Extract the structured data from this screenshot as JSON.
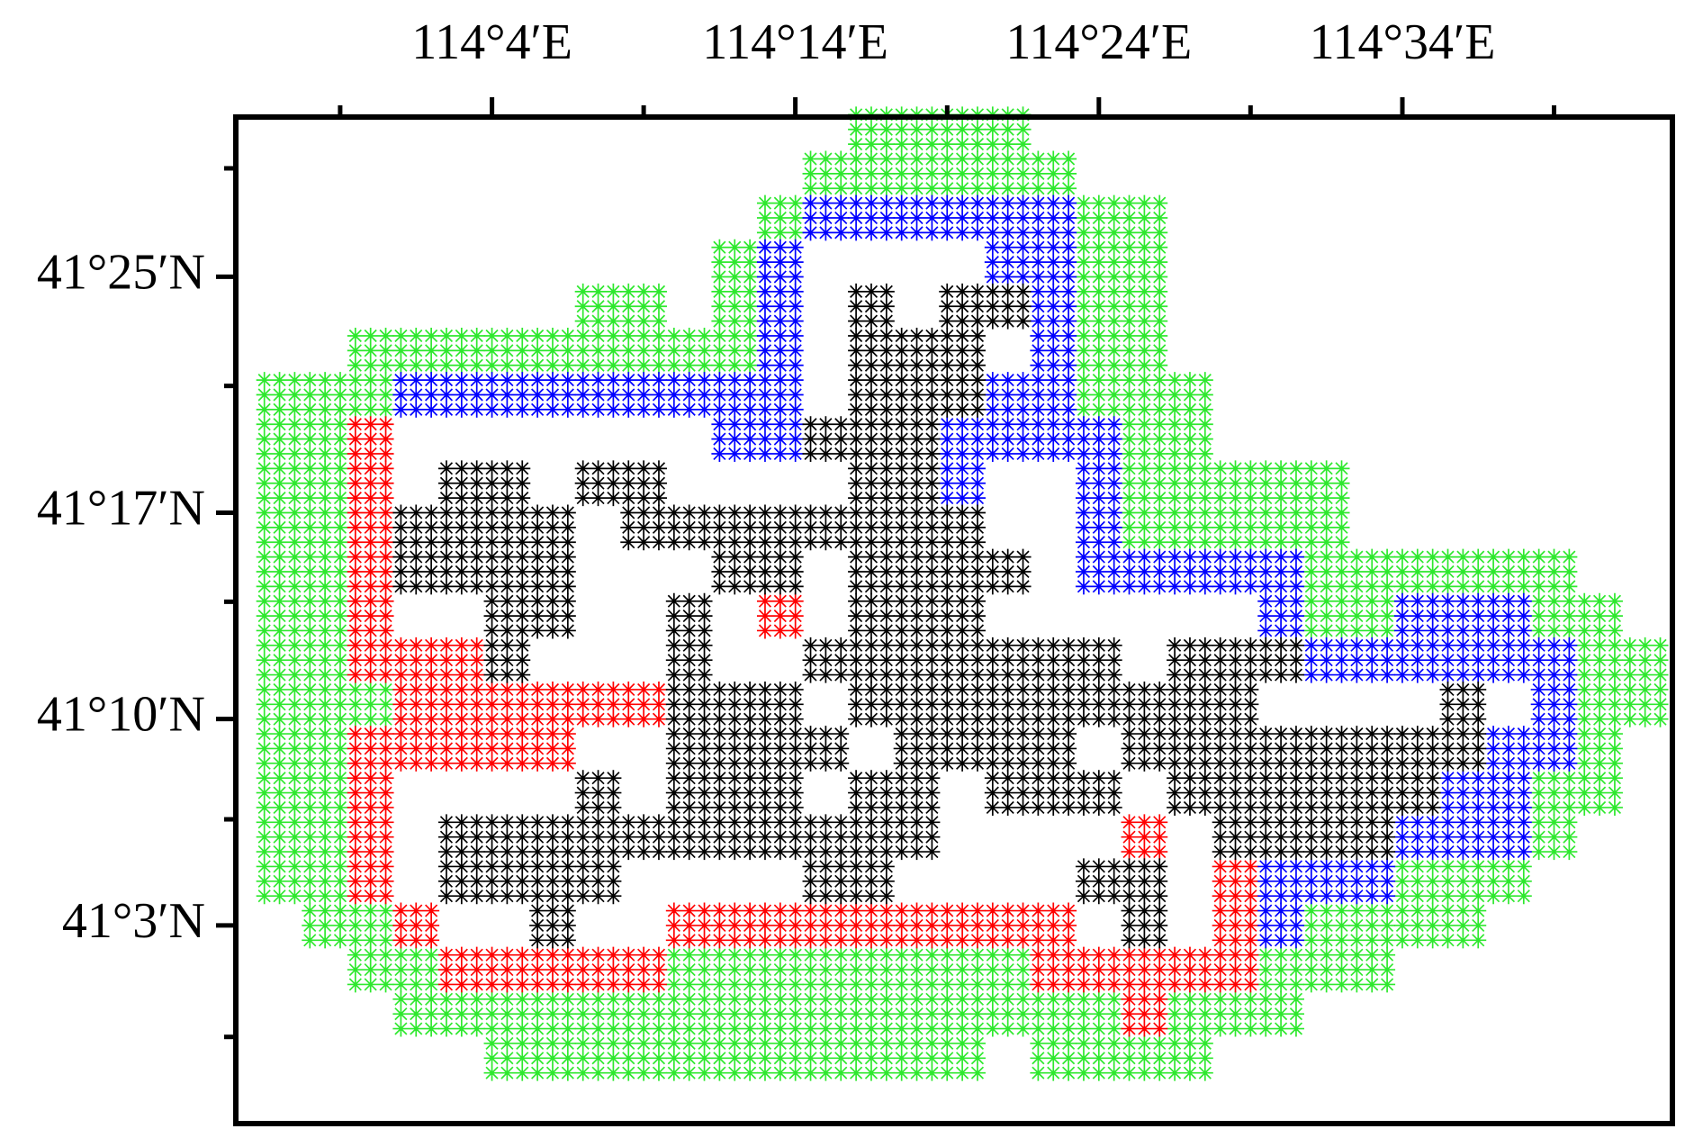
{
  "chart_data": {
    "type": "scatter",
    "marker": "asterisk",
    "xlim": [
      113.926,
      114.715
    ],
    "ylim": [
      40.938,
      41.507
    ],
    "xticks": [
      {
        "value": 114.0667,
        "label": "114°4′E"
      },
      {
        "value": 114.2333,
        "label": "114°14′E"
      },
      {
        "value": 114.4,
        "label": "114°24′E"
      },
      {
        "value": 114.5667,
        "label": "114°34′E"
      }
    ],
    "xminorticks": [
      113.9833,
      114.15,
      114.3167,
      114.4833,
      114.65
    ],
    "yticks": [
      {
        "value": 41.4167,
        "label": "41°25′N"
      },
      {
        "value": 41.2833,
        "label": "41°17′N"
      },
      {
        "value": 41.1667,
        "label": "41°10′N"
      },
      {
        "value": 41.05,
        "label": "41°3′N"
      }
    ],
    "yminorticks": [
      41.478,
      41.355,
      41.233,
      41.11,
      40.987
    ],
    "series": [
      {
        "color": "#2ee82e",
        "x": [
          114.275,
          114.3,
          114.325,
          114.35,
          114.25,
          114.275,
          114.3,
          114.325,
          114.35,
          114.375,
          114.225,
          114.4,
          114.425,
          114.2,
          114.4,
          114.425,
          114.125,
          114.15,
          114.2,
          114.4,
          114.425,
          114,
          114.025,
          114.05,
          114.075,
          114.1,
          114.125,
          114.15,
          114.175,
          114.2,
          114.4,
          114.425,
          113.95,
          113.975,
          114,
          114.4,
          114.425,
          114.45,
          113.95,
          113.975,
          114.425,
          114.45,
          113.95,
          113.975,
          114.425,
          114.45,
          114.475,
          114.5,
          114.525,
          113.95,
          113.975,
          114.425,
          114.45,
          114.475,
          114.5,
          114.525,
          113.95,
          113.975,
          114.525,
          114.55,
          114.575,
          114.6,
          114.625,
          114.65,
          113.95,
          113.975,
          114.525,
          114.55,
          114.65,
          114.675,
          113.95,
          113.975,
          114.675,
          114.7,
          113.95,
          113.975,
          114,
          114.675,
          114.7,
          113.95,
          113.975,
          114.675,
          113.95,
          113.975,
          114.65,
          114.675,
          113.95,
          113.975,
          114.65,
          113.95,
          113.975,
          114.575,
          114.6,
          114.625,
          113.975,
          114,
          114.525,
          114.55,
          114.575,
          114.6,
          114,
          114.025,
          114.175,
          114.2,
          114.225,
          114.25,
          114.275,
          114.3,
          114.325,
          114.35,
          114.5,
          114.525,
          114.55,
          114.025,
          114.05,
          114.075,
          114.1,
          114.125,
          114.15,
          114.175,
          114.2,
          114.225,
          114.25,
          114.275,
          114.3,
          114.325,
          114.35,
          114.375,
          114.4,
          114.45,
          114.475,
          114.5,
          114.075,
          114.1,
          114.125,
          114.15,
          114.175,
          114.2,
          114.225,
          114.25,
          114.275,
          114.3,
          114.325,
          114.375,
          114.4,
          114.425,
          114.45
        ],
        "values": [
          41.5,
          41.5,
          41.5,
          41.5,
          41.475,
          41.475,
          41.475,
          41.475,
          41.475,
          41.475,
          41.45,
          41.45,
          41.45,
          41.425,
          41.425,
          41.425,
          41.4,
          41.4,
          41.4,
          41.4,
          41.4,
          41.375,
          41.375,
          41.375,
          41.375,
          41.375,
          41.375,
          41.375,
          41.375,
          41.375,
          41.375,
          41.375,
          41.35,
          41.35,
          41.35,
          41.35,
          41.35,
          41.35,
          41.325,
          41.325,
          41.325,
          41.325,
          41.3,
          41.3,
          41.3,
          41.3,
          41.3,
          41.3,
          41.3,
          41.275,
          41.275,
          41.275,
          41.275,
          41.275,
          41.275,
          41.275,
          41.25,
          41.25,
          41.25,
          41.25,
          41.25,
          41.25,
          41.25,
          41.25,
          41.225,
          41.225,
          41.225,
          41.225,
          41.225,
          41.225,
          41.2,
          41.2,
          41.2,
          41.2,
          41.175,
          41.175,
          41.175,
          41.175,
          41.175,
          41.15,
          41.15,
          41.15,
          41.125,
          41.125,
          41.125,
          41.125,
          41.1,
          41.1,
          41.1,
          41.075,
          41.075,
          41.075,
          41.075,
          41.075,
          41.05,
          41.05,
          41.05,
          41.05,
          41.05,
          41.05,
          41.025,
          41.025,
          41.025,
          41.025,
          41.025,
          41.025,
          41.025,
          41.025,
          41.025,
          41.025,
          41.025,
          41.025,
          41.025,
          41,
          41,
          41,
          41,
          41,
          41,
          41,
          41,
          41,
          41,
          41,
          41,
          41,
          41,
          41,
          41,
          41,
          41,
          41,
          40.975,
          40.975,
          40.975,
          40.975,
          40.975,
          40.975,
          40.975,
          40.975,
          40.975,
          40.975,
          40.975,
          40.975,
          40.975,
          40.975,
          40.975
        ]
      },
      {
        "color": "#ff0000",
        "x": [
          114,
          114,
          114,
          114,
          114,
          114.225,
          114,
          114.025,
          114.05,
          114.025,
          114.05,
          114.075,
          114.1,
          114.125,
          114.15,
          114,
          114.025,
          114.05,
          114.075,
          114.1,
          114,
          114,
          114.425,
          114,
          114.475,
          114.025,
          114.175,
          114.2,
          114.225,
          114.25,
          114.275,
          114.3,
          114.325,
          114.35,
          114.375,
          114.475,
          114.05,
          114.075,
          114.1,
          114.125,
          114.15,
          114.375,
          114.4,
          114.425,
          114.45,
          114.475,
          114.425
        ],
        "values": [
          41.325,
          41.3,
          41.275,
          41.25,
          41.225,
          41.225,
          41.2,
          41.2,
          41.2,
          41.175,
          41.175,
          41.175,
          41.175,
          41.175,
          41.175,
          41.15,
          41.15,
          41.15,
          41.15,
          41.15,
          41.125,
          41.1,
          41.1,
          41.075,
          41.075,
          41.05,
          41.05,
          41.05,
          41.05,
          41.05,
          41.05,
          41.05,
          41.05,
          41.05,
          41.05,
          41.05,
          41.025,
          41.025,
          41.025,
          41.025,
          41.025,
          41.025,
          41.025,
          41.025,
          41.025,
          41.025,
          41
        ]
      },
      {
        "color": "#0000ff",
        "x": [
          114.25,
          114.275,
          114.3,
          114.325,
          114.35,
          114.375,
          114.225,
          114.35,
          114.375,
          114.225,
          114.375,
          114.225,
          114.375,
          114.025,
          114.05,
          114.075,
          114.1,
          114.125,
          114.15,
          114.175,
          114.2,
          114.225,
          114.35,
          114.375,
          114.2,
          114.225,
          114.325,
          114.35,
          114.375,
          114.4,
          114.325,
          114.4,
          114.4,
          114.4,
          114.425,
          114.45,
          114.475,
          114.5,
          114.5,
          114.575,
          114.6,
          114.625,
          114.525,
          114.55,
          114.575,
          114.6,
          114.625,
          114.65,
          114.65,
          114.625,
          114.65,
          114.6,
          114.625,
          114.575,
          114.6,
          114.625,
          114.5,
          114.525,
          114.55,
          114.5
        ],
        "values": [
          41.45,
          41.45,
          41.45,
          41.45,
          41.45,
          41.45,
          41.425,
          41.425,
          41.425,
          41.4,
          41.4,
          41.375,
          41.375,
          41.35,
          41.35,
          41.35,
          41.35,
          41.35,
          41.35,
          41.35,
          41.35,
          41.35,
          41.35,
          41.35,
          41.325,
          41.325,
          41.325,
          41.325,
          41.325,
          41.325,
          41.3,
          41.3,
          41.275,
          41.25,
          41.25,
          41.25,
          41.25,
          41.25,
          41.225,
          41.225,
          41.225,
          41.225,
          41.2,
          41.2,
          41.2,
          41.2,
          41.2,
          41.2,
          41.175,
          41.15,
          41.15,
          41.125,
          41.125,
          41.1,
          41.1,
          41.1,
          41.075,
          41.075,
          41.075,
          41.05
        ]
      },
      {
        "color": "#000000",
        "x": [
          114.275,
          114.325,
          114.35,
          114.275,
          114.3,
          114.325,
          114.275,
          114.3,
          114.325,
          114.25,
          114.275,
          114.3,
          114.05,
          114.075,
          114.125,
          114.15,
          114.275,
          114.3,
          114.025,
          114.05,
          114.075,
          114.1,
          114.15,
          114.175,
          114.2,
          114.225,
          114.25,
          114.275,
          114.3,
          114.325,
          114.025,
          114.05,
          114.075,
          114.1,
          114.2,
          114.225,
          114.275,
          114.3,
          114.325,
          114.35,
          114.075,
          114.1,
          114.175,
          114.275,
          114.3,
          114.325,
          114.075,
          114.175,
          114.25,
          114.275,
          114.3,
          114.325,
          114.35,
          114.375,
          114.4,
          114.45,
          114.475,
          114.5,
          114.175,
          114.2,
          114.225,
          114.275,
          114.3,
          114.325,
          114.35,
          114.375,
          114.4,
          114.425,
          114.45,
          114.475,
          114.6,
          114.175,
          114.2,
          114.225,
          114.25,
          114.3,
          114.325,
          114.35,
          114.375,
          114.425,
          114.45,
          114.475,
          114.5,
          114.525,
          114.55,
          114.575,
          114.6,
          114.125,
          114.175,
          114.2,
          114.225,
          114.275,
          114.3,
          114.35,
          114.375,
          114.4,
          114.45,
          114.475,
          114.5,
          114.525,
          114.55,
          114.575,
          114.05,
          114.075,
          114.1,
          114.125,
          114.15,
          114.175,
          114.2,
          114.225,
          114.25,
          114.275,
          114.3,
          114.475,
          114.5,
          114.525,
          114.55,
          114.05,
          114.075,
          114.1,
          114.125,
          114.25,
          114.275,
          114.4,
          114.425,
          114.1,
          114.425
        ],
        "values": [
          41.4,
          41.4,
          41.4,
          41.375,
          41.375,
          41.375,
          41.35,
          41.35,
          41.35,
          41.325,
          41.325,
          41.325,
          41.3,
          41.3,
          41.3,
          41.3,
          41.3,
          41.3,
          41.275,
          41.275,
          41.275,
          41.275,
          41.275,
          41.275,
          41.275,
          41.275,
          41.275,
          41.275,
          41.275,
          41.275,
          41.25,
          41.25,
          41.25,
          41.25,
          41.25,
          41.25,
          41.25,
          41.25,
          41.25,
          41.25,
          41.225,
          41.225,
          41.225,
          41.225,
          41.225,
          41.225,
          41.2,
          41.2,
          41.2,
          41.2,
          41.2,
          41.2,
          41.2,
          41.2,
          41.2,
          41.2,
          41.2,
          41.2,
          41.175,
          41.175,
          41.175,
          41.175,
          41.175,
          41.175,
          41.175,
          41.175,
          41.175,
          41.175,
          41.175,
          41.175,
          41.175,
          41.15,
          41.15,
          41.15,
          41.15,
          41.15,
          41.15,
          41.15,
          41.15,
          41.15,
          41.15,
          41.15,
          41.15,
          41.15,
          41.15,
          41.15,
          41.15,
          41.125,
          41.125,
          41.125,
          41.125,
          41.125,
          41.125,
          41.125,
          41.125,
          41.125,
          41.125,
          41.125,
          41.125,
          41.125,
          41.125,
          41.125,
          41.1,
          41.1,
          41.1,
          41.1,
          41.1,
          41.1,
          41.1,
          41.1,
          41.1,
          41.1,
          41.1,
          41.1,
          41.1,
          41.1,
          41.1,
          41.075,
          41.075,
          41.075,
          41.075,
          41.075,
          41.075,
          41.075,
          41.075,
          41.05,
          41.05
        ]
      }
    ]
  }
}
